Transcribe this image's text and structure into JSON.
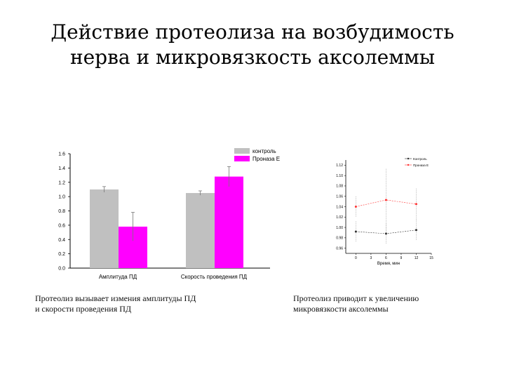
{
  "slide": {
    "title_line1": "Действие протеолиза на возбудимость",
    "title_line2": "нерва и микровязкость аксолеммы",
    "caption_left_line1": "Протеолиз вызывает измения амплитуды ПД",
    "caption_left_line2": "и скорости проведения ПД",
    "caption_right_line1": "Протеолиз приводит к увеличению",
    "caption_right_line2": "микровязкости аксолеммы"
  },
  "chart_data": [
    {
      "type": "bar",
      "categories": [
        "Амплитуда ПД",
        "Скорость проведения ПД"
      ],
      "series": [
        {
          "name": "контроль",
          "values": [
            1.1,
            1.05
          ],
          "errors": [
            0.04,
            0.03
          ],
          "color": "#c0c0c0"
        },
        {
          "name": "Проназа Е",
          "values": [
            0.58,
            1.28
          ],
          "errors": [
            0.2,
            0.14
          ],
          "color": "#ff00ff"
        }
      ],
      "y_ticks": [
        "0.0",
        "0.2",
        "0.4",
        "0.6",
        "0.8",
        "1.0",
        "1.2",
        "1.4",
        "1.6"
      ],
      "ylim": [
        0,
        1.6
      ],
      "legend_position": "top-right",
      "grid": false
    },
    {
      "type": "line",
      "x_ticks": [
        "0",
        "3",
        "6",
        "9",
        "12",
        "15"
      ],
      "y_ticks": [
        "0.96",
        "0.98",
        "1.00",
        "1.02",
        "1.04",
        "1.06",
        "1.08",
        "1.10",
        "1.12"
      ],
      "xlim": [
        -2,
        15
      ],
      "ylim": [
        0.95,
        1.13
      ],
      "xlabel": "Время, мин",
      "series": [
        {
          "name": "Контроль",
          "x": [
            0,
            6,
            12
          ],
          "y": [
            0.992,
            0.988,
            0.995
          ],
          "errors": [
            0.02,
            0.02,
            0.02
          ],
          "color": "#333333"
        },
        {
          "name": "Проназа Е",
          "x": [
            0,
            6,
            12
          ],
          "y": [
            1.04,
            1.053,
            1.045
          ],
          "errors": [
            0.02,
            0.06,
            0.03
          ],
          "color": "#ff3333"
        }
      ],
      "legend_position": "top-right",
      "grid": false
    }
  ]
}
